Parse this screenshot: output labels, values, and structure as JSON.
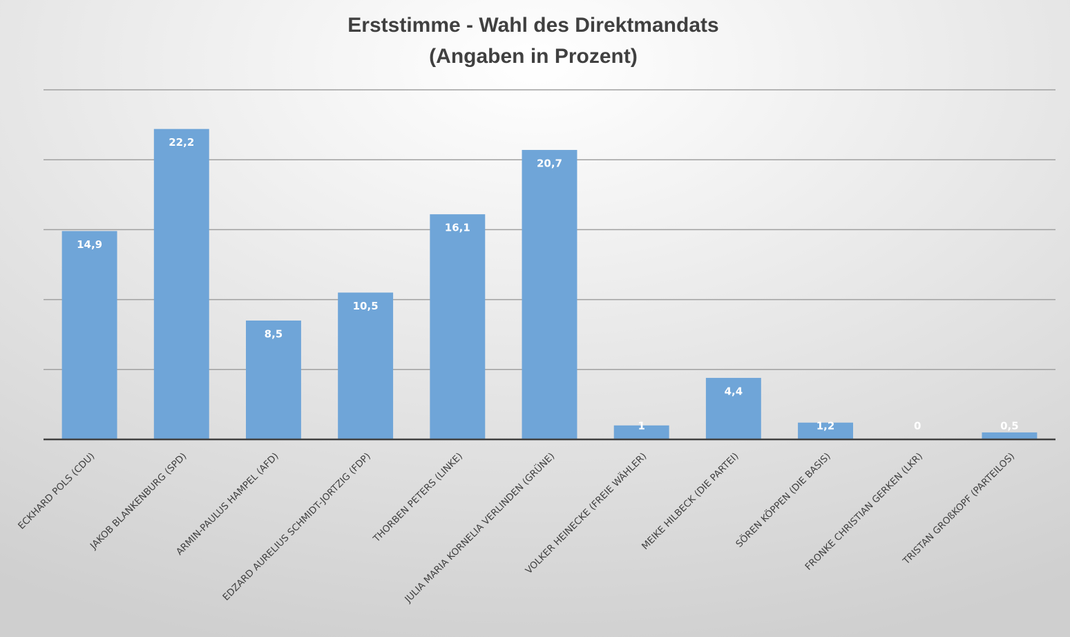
{
  "chart_data": {
    "type": "bar",
    "title": "Erststimme - Wahl des Direktmandats",
    "subtitle": "(Angaben in Prozent)",
    "categories": [
      "ECKHARD POLS (CDU)",
      "JAKOB BLANKENBURG (SPD)",
      "ARMIN-PAULUS HAMPEL (AFD)",
      "EDZARD AURELIUS SCHMIDT-JORTZIG (FDP)",
      "THORBEN PETERS (LINKE)",
      "JULIA MARIA KORNELIA VERLINDEN (GRÜNE)",
      "VOLKER HEINECKE (FREIE WÄHLER)",
      "MEIKE HILBECK (DIE PARTEI)",
      "SÖREN KÖPPEN (DIE BASIS)",
      "FRONKE CHRISTIAN GERKEN (LKR)",
      "TRISTAN GROßKOPF (PARTEILOS)"
    ],
    "values": [
      14.9,
      22.2,
      8.5,
      10.5,
      16.1,
      20.7,
      1,
      4.4,
      1.2,
      0,
      0.5
    ],
    "value_labels": [
      "14,9",
      "22,2",
      "8,5",
      "10,5",
      "16,1",
      "20,7",
      "1",
      "4,4",
      "1,2",
      "0",
      "0,5"
    ],
    "color": "#6fa5d8",
    "ylim": [
      0,
      25
    ],
    "yticks": [
      0,
      5,
      10,
      15,
      20,
      25
    ],
    "grid": true
  }
}
